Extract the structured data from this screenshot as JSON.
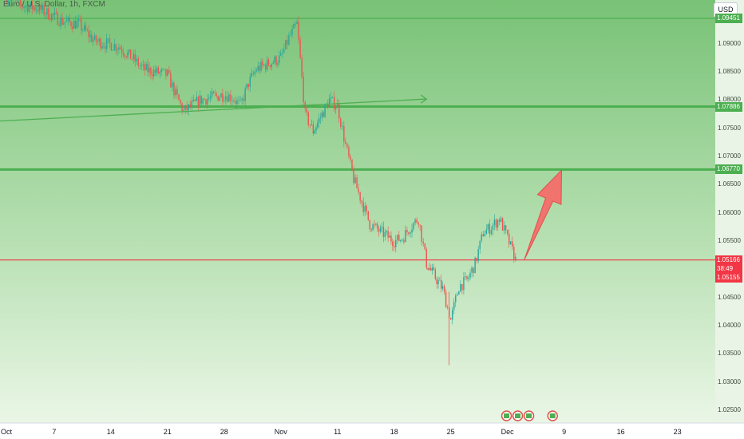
{
  "chart_data": {
    "type": "candlestick",
    "title": "Euro / U.S. Dollar, 1h, FXCM",
    "currency": "USD",
    "y_ticks": [
      "1.09451",
      "1.09000",
      "1.08500",
      "1.08000",
      "1.07500",
      "1.07000",
      "1.06500",
      "1.06000",
      "1.05500",
      "1.05000",
      "1.04500",
      "1.04000",
      "1.03500",
      "1.03000",
      "1.02500"
    ],
    "x_ticks": [
      "Oct",
      "7",
      "14",
      "21",
      "28",
      "Nov",
      "11",
      "18",
      "25",
      "Dec",
      "9",
      "16",
      "23"
    ],
    "ylim": [
      1.022,
      1.0965
    ],
    "horizontal_levels": [
      {
        "label": "1.09451",
        "price": 1.09451,
        "color": "#4caf50"
      },
      {
        "label": "1.07886",
        "price": 1.07886,
        "color": "#4caf50"
      },
      {
        "label": "1.06770",
        "price": 1.0677,
        "color": "#4caf50"
      }
    ],
    "current_price": {
      "label": "1.05166",
      "price": 1.05166,
      "countdown": "38:49",
      "color": "#f23645"
    },
    "bid_price": {
      "label": "1.05155",
      "price": 1.05155,
      "color": "#f23645"
    },
    "trendline": {
      "from": {
        "date": "Oct 1",
        "price": 1.0763
      },
      "to": {
        "date": "Nov 22",
        "price": 1.0802
      }
    },
    "forecast_arrow": {
      "from": {
        "date": "Dec 3",
        "price": 1.0517
      },
      "to": {
        "date": "Dec 8",
        "price": 1.0676
      },
      "color": "#f0736e"
    },
    "price_path": [
      [
        "Oct 1",
        1.0984
      ],
      [
        "Oct 3",
        1.0968
      ],
      [
        "Oct 5",
        1.0963
      ],
      [
        "Oct 8",
        1.094
      ],
      [
        "Oct 10",
        1.0935
      ],
      [
        "Oct 12",
        1.0905
      ],
      [
        "Oct 15",
        1.0895
      ],
      [
        "Oct 17",
        1.087
      ],
      [
        "Oct 18",
        1.0855
      ],
      [
        "Oct 21",
        1.0845
      ],
      [
        "Oct 22",
        1.081
      ],
      [
        "Oct 23",
        1.078
      ],
      [
        "Oct 24",
        1.079
      ],
      [
        "Oct 25",
        1.08
      ],
      [
        "Oct 28",
        1.081
      ],
      [
        "Oct 29",
        1.0805
      ],
      [
        "Oct 30",
        1.079
      ],
      [
        "Oct 31",
        1.083
      ],
      [
        "Nov 1",
        1.0855
      ],
      [
        "Nov 4",
        1.0875
      ],
      [
        "Nov 5",
        1.091
      ],
      [
        "Nov 6",
        1.0935
      ],
      [
        "Nov 7",
        1.0775
      ],
      [
        "Nov 8",
        1.0745
      ],
      [
        "Nov 10",
        1.08
      ],
      [
        "Nov 11",
        1.079
      ],
      [
        "Nov 12",
        1.072
      ],
      [
        "Nov 13",
        1.066
      ],
      [
        "Nov 14",
        1.062
      ],
      [
        "Nov 15",
        1.058
      ],
      [
        "Nov 18",
        1.055
      ],
      [
        "Nov 19",
        1.0555
      ],
      [
        "Nov 20",
        1.0575
      ],
      [
        "Nov 21",
        1.059
      ],
      [
        "Nov 22",
        1.051
      ],
      [
        "Nov 24",
        1.0465
      ],
      [
        "Nov 25",
        1.041
      ],
      [
        "Nov 26",
        1.047
      ],
      [
        "Nov 27",
        1.048
      ],
      [
        "Nov 28",
        1.051
      ],
      [
        "Nov 29",
        1.0565
      ],
      [
        "Nov 30",
        1.0575
      ],
      [
        "Dec 1",
        1.059
      ],
      [
        "Dec 2",
        1.0555
      ],
      [
        "Dec 3",
        1.0517
      ]
    ],
    "markers": [
      "event-icon",
      "event-icon",
      "event-icon",
      "event-icon"
    ]
  },
  "colors": {
    "up": "#26a69a",
    "down": "#ef5350",
    "bg_top": "#7cc57a",
    "bg_bottom": "#d9efd4",
    "level": "#4caf50",
    "arrow": "#f0736e"
  }
}
